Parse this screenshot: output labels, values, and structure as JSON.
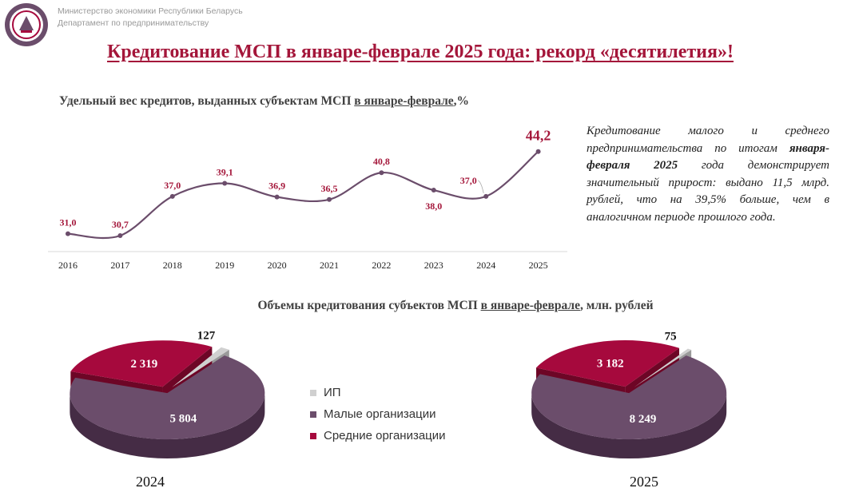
{
  "header": {
    "ministry": "Министерство экономики Республики Беларусь",
    "department": "Департамент по предпринимательству"
  },
  "title": "Кредитование МСП в январе-феврале 2025 года: рекорд «десятилетия»!",
  "line_title": {
    "a": "Удельный вес кредитов, выданных субъектам МСП ",
    "u": "в январе-феврале",
    "b": ",%"
  },
  "pie_title": {
    "a": "Объемы кредитования субъектов МСП ",
    "u": "в январе-феврале",
    "b": ", млн. рублей"
  },
  "note": {
    "p1": "Кредитование малого и среднего предпринимательства по итогам",
    "bold": "января-февраля 2025",
    "p2": "года демонстрирует значительный прирост: выдано 11,5 млрд. рублей, что на 39,5% больше, чем в",
    "p3": "аналогичном периоде прошлого года."
  },
  "legend": [
    {
      "label": "ИП",
      "color": "#d0d0d0"
    },
    {
      "label": "Малые организации",
      "color": "#6b4d6b"
    },
    {
      "label": "Средние организации",
      "color": "#a6093d"
    }
  ],
  "colors": {
    "accent": "#a4163a",
    "line": "#6b4d6b",
    "label": "#a4163a"
  },
  "chart_data": [
    {
      "type": "line",
      "x": [
        "2016",
        "2017",
        "2018",
        "2019",
        "2020",
        "2021",
        "2022",
        "2023",
        "2024",
        "2025"
      ],
      "series": [
        {
          "values": [
            31.0,
            30.7,
            37.0,
            39.1,
            36.9,
            36.5,
            40.8,
            38.0,
            37.0,
            44.2
          ]
        }
      ],
      "labels": [
        "31,0",
        "30,7",
        "37,0",
        "39,1",
        "36,9",
        "36,5",
        "40,8",
        "38,0",
        "37,0",
        "44,2"
      ],
      "title": "Удельный вес кредитов, выданных субъектам МСП в январе-феврале,%"
    },
    {
      "type": "pie",
      "title": "2024",
      "categories": [
        "ИП",
        "Малые организации",
        "Средние организации"
      ],
      "values": [
        127,
        5804,
        2319
      ],
      "labels": [
        "127",
        "5 804",
        "2 319"
      ]
    },
    {
      "type": "pie",
      "title": "2025",
      "categories": [
        "ИП",
        "Малые организации",
        "Средние организации"
      ],
      "values": [
        75,
        8249,
        3182
      ],
      "labels": [
        "75",
        "8 249",
        "3 182"
      ]
    }
  ]
}
